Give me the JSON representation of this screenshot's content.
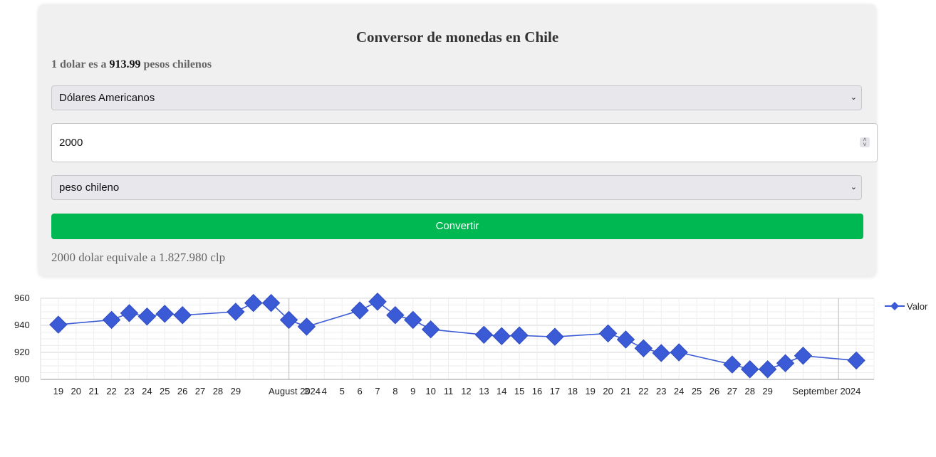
{
  "converter": {
    "title": "Conversor de monedas en Chile",
    "rate_prefix": "1 dolar es a",
    "rate_value": "913.99",
    "rate_suffix": "pesos chilenos",
    "from_currency": "Dólares Americanos",
    "amount": "2000",
    "to_currency": "peso chileno",
    "convert_label": "Convertir",
    "result_text": "2000 dolar equivale a 1.827.980 clp"
  },
  "chart_data": {
    "type": "line",
    "series": [
      {
        "name": "Valor",
        "color": "#3b5bd6",
        "marker": "diamond",
        "points": [
          {
            "x": "2024-07-19",
            "y": 940.5
          },
          {
            "x": "2024-07-22",
            "y": 944
          },
          {
            "x": "2024-07-23",
            "y": 949
          },
          {
            "x": "2024-07-24",
            "y": 946.5
          },
          {
            "x": "2024-07-25",
            "y": 948.5
          },
          {
            "x": "2024-07-26",
            "y": 947.5
          },
          {
            "x": "2024-07-29",
            "y": 950
          },
          {
            "x": "2024-07-30",
            "y": 956.5
          },
          {
            "x": "2024-07-31",
            "y": 956.5
          },
          {
            "x": "2024-08-01",
            "y": 944
          },
          {
            "x": "2024-08-02",
            "y": 939
          },
          {
            "x": "2024-08-05",
            "y": 951
          },
          {
            "x": "2024-08-06",
            "y": 957.5
          },
          {
            "x": "2024-08-07",
            "y": 947.5
          },
          {
            "x": "2024-08-08",
            "y": 944
          },
          {
            "x": "2024-08-09",
            "y": 937
          },
          {
            "x": "2024-08-12",
            "y": 933
          },
          {
            "x": "2024-08-13",
            "y": 932
          },
          {
            "x": "2024-08-14",
            "y": 932.5
          },
          {
            "x": "2024-08-16",
            "y": 931.5
          },
          {
            "x": "2024-08-19",
            "y": 934
          },
          {
            "x": "2024-08-20",
            "y": 929.5
          },
          {
            "x": "2024-08-21",
            "y": 923
          },
          {
            "x": "2024-08-22",
            "y": 919.5
          },
          {
            "x": "2024-08-23",
            "y": 920
          },
          {
            "x": "2024-08-26",
            "y": 911
          },
          {
            "x": "2024-08-27",
            "y": 907.5
          },
          {
            "x": "2024-08-28",
            "y": 907.5
          },
          {
            "x": "2024-08-29",
            "y": 912
          },
          {
            "x": "2024-08-30",
            "y": 917.5
          },
          {
            "x": "2024-09-02",
            "y": 914
          }
        ]
      }
    ],
    "y_ticks": [
      "960",
      "940",
      "920",
      "900"
    ],
    "ylim": [
      900,
      960
    ],
    "x_ticks": [
      "19",
      "20",
      "21",
      "22",
      "23",
      "24",
      "25",
      "26",
      "27",
      "28",
      "29",
      "August 2024",
      "3",
      "4",
      "5",
      "6",
      "7",
      "8",
      "9",
      "10",
      "11",
      "12",
      "13",
      "14",
      "15",
      "16",
      "17",
      "18",
      "19",
      "20",
      "21",
      "22",
      "23",
      "24",
      "25",
      "26",
      "27",
      "28",
      "29",
      "September 2024"
    ],
    "xlim": [
      "2024-07-18",
      "2024-09-03"
    ],
    "legend": "right",
    "grid": true
  }
}
